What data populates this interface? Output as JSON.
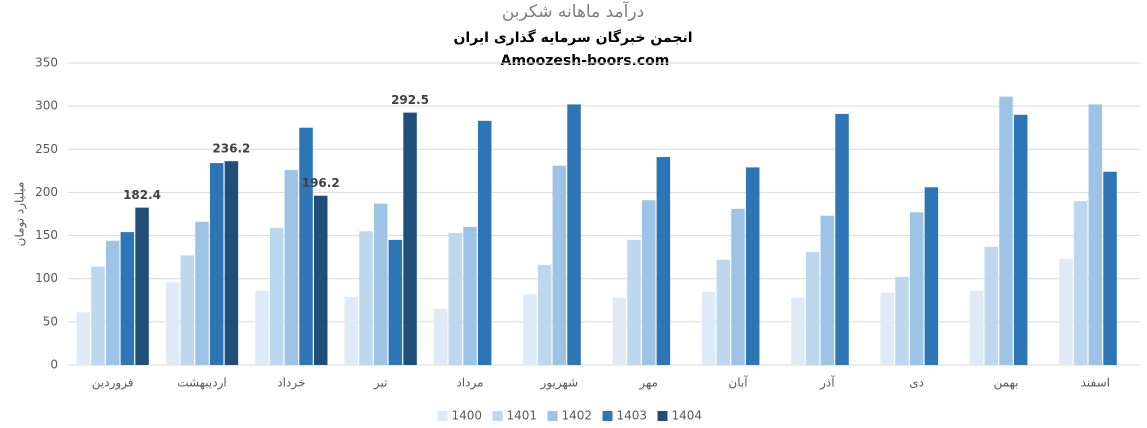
{
  "chart_data": {
    "type": "bar",
    "title": "درآمد ماهانه شکربن",
    "subtitle": "انجمن خبرگان سرمایه گذاری ایران",
    "source": "Amoozesh-boors.com",
    "y_label": "میلیارد تومان",
    "categories": [
      "فروردین",
      "اردیبهشت",
      "خرداد",
      "تیر",
      "مرداد",
      "شهریور",
      "مهر",
      "آبان",
      "آذر",
      "دی",
      "بهمن",
      "اسفند"
    ],
    "series": [
      {
        "name": "1400",
        "color": "#deebf7",
        "values": [
          61,
          96,
          86,
          79,
          65,
          82,
          78,
          85,
          78,
          84,
          86,
          123
        ]
      },
      {
        "name": "1401",
        "color": "#bdd7ee",
        "values": [
          114,
          127,
          159,
          155,
          153,
          116,
          145,
          122,
          131,
          102,
          137,
          190
        ]
      },
      {
        "name": "1402",
        "color": "#9dc3e6",
        "values": [
          144,
          166,
          226,
          187,
          160,
          231,
          191,
          181,
          173,
          177,
          311,
          302
        ]
      },
      {
        "name": "1403",
        "color": "#2e75b6",
        "values": [
          154,
          234,
          275,
          145,
          283,
          302,
          241,
          229,
          291,
          206,
          290,
          224
        ]
      },
      {
        "name": "1404",
        "color": "#1f4e79",
        "values": [
          182.4,
          236.2,
          196.2,
          292.5,
          null,
          null,
          null,
          null,
          null,
          null,
          null,
          null
        ],
        "data_labels": true
      }
    ],
    "ylim": [
      0,
      350
    ],
    "yticks": [
      0,
      50,
      100,
      150,
      200,
      250,
      300,
      350
    ],
    "grid": true,
    "legend": "bottom"
  }
}
